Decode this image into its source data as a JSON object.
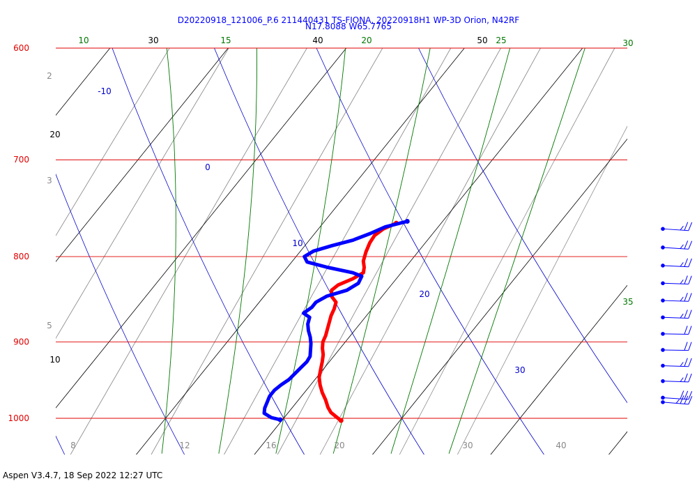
{
  "title_line1": "D20220918_121006_P.6 211440431 TS-FIONA, 20220918H1 WP-3D Orion, N42RF",
  "title_line2": "N17.8088 W65.7765",
  "footer": "Aspen V3.4.7, 18 Sep 2022  12:27 UTC",
  "colors": {
    "isobar": "#e00000",
    "isotherm": "#000000",
    "dry_adiabat": "#0000cc",
    "moist_adiabat": "#007700",
    "mixing_ratio": "#888888",
    "temperature": "#ff0000",
    "dewpoint": "#0000ff",
    "wind": "#0000ff"
  },
  "chart_data": {
    "type": "skew-t",
    "ylabel_units": "hPa",
    "pressure_levels": [
      {
        "label": "600",
        "p": 600
      },
      {
        "label": "700",
        "p": 700
      },
      {
        "label": "800",
        "p": 800
      },
      {
        "label": "900",
        "p": 900
      },
      {
        "label": "1000",
        "p": 1000
      }
    ],
    "ylim": [
      1000,
      600
    ],
    "isotherms": [
      {
        "label": "10",
        "t": 10
      },
      {
        "label": "20",
        "t": 20
      },
      {
        "label": "30",
        "t": 30
      },
      {
        "label": "40",
        "t": 40
      },
      {
        "label": "50",
        "t": 50
      }
    ],
    "dry_adiabats": [
      {
        "label": "-10",
        "theta": -10
      },
      {
        "label": "0",
        "theta": 0
      },
      {
        "label": "10",
        "theta": 10
      },
      {
        "label": "20",
        "theta": 20
      },
      {
        "label": "30",
        "theta": 30
      }
    ],
    "moist_adiabats": [
      {
        "label": "10",
        "thetae": 10
      },
      {
        "label": "15",
        "thetae": 15
      },
      {
        "label": "20",
        "thetae": 20
      },
      {
        "label": "25",
        "thetae": 25
      },
      {
        "label": "30",
        "thetae": 30
      },
      {
        "label": "35",
        "thetae": 35
      }
    ],
    "mixing_ratio_lines": [
      {
        "label": "2",
        "w": 2
      },
      {
        "label": "3",
        "w": 3
      },
      {
        "label": "5",
        "w": 5
      },
      {
        "label": "8",
        "w": 8
      },
      {
        "label": "12",
        "w": 12
      },
      {
        "label": "16",
        "w": 16
      },
      {
        "label": "20",
        "w": 20
      },
      {
        "label": "30",
        "w": 30
      },
      {
        "label": "40",
        "w": 40
      }
    ],
    "series": [
      {
        "key": "temperature",
        "points": [
          [
            764,
            16.2
          ],
          [
            770,
            15.5
          ],
          [
            777,
            15.2
          ],
          [
            785,
            15.3
          ],
          [
            795,
            15.6
          ],
          [
            805,
            16.0
          ],
          [
            812,
            16.5
          ],
          [
            818,
            16.8
          ],
          [
            825,
            16.3
          ],
          [
            832,
            15.5
          ],
          [
            838,
            15.3
          ],
          [
            845,
            15.7
          ],
          [
            852,
            16.5
          ],
          [
            860,
            16.8
          ],
          [
            868,
            17.0
          ],
          [
            876,
            17.3
          ],
          [
            884,
            17.6
          ],
          [
            892,
            17.9
          ],
          [
            900,
            18.1
          ],
          [
            908,
            18.5
          ],
          [
            916,
            19.0
          ],
          [
            925,
            19.4
          ],
          [
            935,
            19.8
          ],
          [
            945,
            20.2
          ],
          [
            955,
            20.8
          ],
          [
            965,
            21.5
          ],
          [
            975,
            22.3
          ],
          [
            985,
            23.0
          ],
          [
            992,
            23.6
          ],
          [
            1000,
            24.6
          ],
          [
            1003,
            25.0
          ]
        ]
      },
      {
        "key": "dewpoint",
        "points": [
          [
            762,
            17.0
          ],
          [
            768,
            15.5
          ],
          [
            775,
            14.7
          ],
          [
            782,
            13.7
          ],
          [
            788,
            12.3
          ],
          [
            794,
            11.1
          ],
          [
            800,
            10.7
          ],
          [
            806,
            11.3
          ],
          [
            812,
            13.4
          ],
          [
            818,
            15.9
          ],
          [
            822,
            16.9
          ],
          [
            830,
            17.1
          ],
          [
            838,
            16.6
          ],
          [
            845,
            15.3
          ],
          [
            852,
            14.8
          ],
          [
            858,
            14.8
          ],
          [
            865,
            14.5
          ],
          [
            870,
            15.3
          ],
          [
            878,
            15.6
          ],
          [
            886,
            16.1
          ],
          [
            894,
            16.7
          ],
          [
            902,
            17.2
          ],
          [
            910,
            17.6
          ],
          [
            918,
            18.0
          ],
          [
            925,
            18.1
          ],
          [
            932,
            18.0
          ],
          [
            940,
            17.9
          ],
          [
            948,
            17.8
          ],
          [
            955,
            17.5
          ],
          [
            962,
            17.3
          ],
          [
            970,
            17.3
          ],
          [
            978,
            17.5
          ],
          [
            986,
            17.7
          ],
          [
            993,
            18.0
          ],
          [
            999,
            18.9
          ],
          [
            1002,
            19.8
          ]
        ]
      }
    ],
    "wind_barbs": [
      {
        "p": 770,
        "dir": 110,
        "kt": 25
      },
      {
        "p": 790,
        "dir": 110,
        "kt": 25
      },
      {
        "p": 810,
        "dir": 105,
        "kt": 25
      },
      {
        "p": 830,
        "dir": 100,
        "kt": 25
      },
      {
        "p": 850,
        "dir": 100,
        "kt": 25
      },
      {
        "p": 870,
        "dir": 100,
        "kt": 25
      },
      {
        "p": 890,
        "dir": 95,
        "kt": 20
      },
      {
        "p": 910,
        "dir": 95,
        "kt": 20
      },
      {
        "p": 930,
        "dir": 100,
        "kt": 25
      },
      {
        "p": 950,
        "dir": 100,
        "kt": 25
      },
      {
        "p": 972,
        "dir": 110,
        "kt": 30
      },
      {
        "p": 978,
        "dir": 115,
        "kt": 35
      }
    ]
  }
}
